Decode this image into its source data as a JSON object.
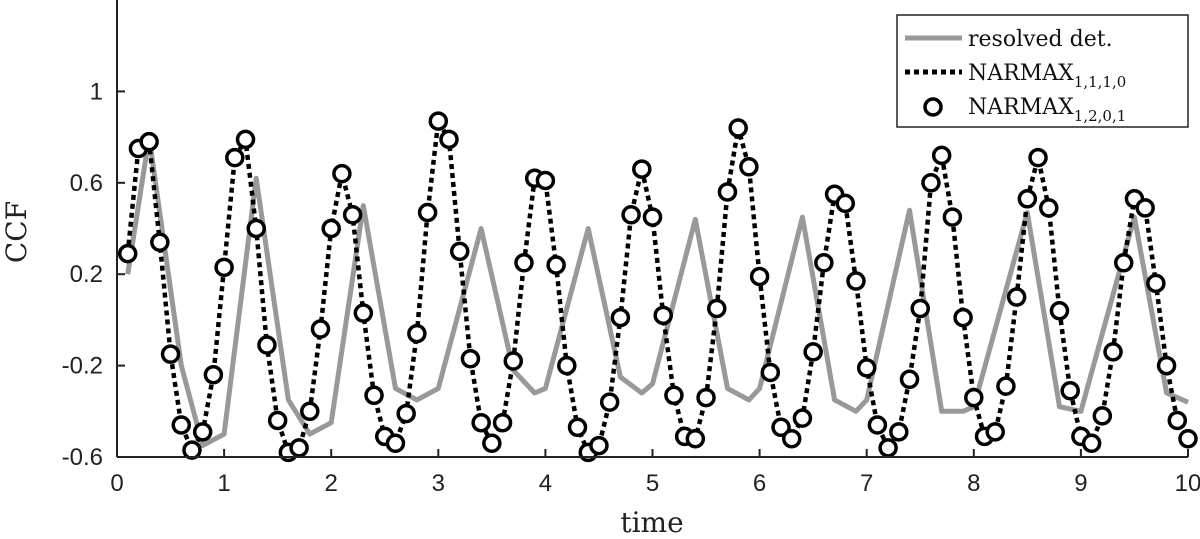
{
  "chart_data": {
    "type": "line",
    "xlabel": "time",
    "ylabel": "CCF",
    "xlim": [
      0,
      10
    ],
    "ylim": [
      -0.6,
      1.4
    ],
    "xticks": [
      0,
      1,
      2,
      3,
      4,
      5,
      6,
      7,
      8,
      9,
      10
    ],
    "xtick_labels": [
      "0",
      "1",
      "2",
      "3",
      "4",
      "5",
      "6",
      "7",
      "8",
      "9",
      "10"
    ],
    "yticks": [
      -0.6,
      -0.2,
      0.2,
      0.6,
      1
    ],
    "ytick_labels": [
      "-0.6",
      "-0.2",
      "0.2",
      "0.6",
      "1"
    ],
    "grid": false,
    "legend_position": "top-right",
    "series": [
      {
        "name": "resolved det.",
        "style": "solid",
        "color": "#999999",
        "x": [
          0.1,
          0.3,
          0.6,
          0.8,
          1.0,
          1.3,
          1.6,
          1.8,
          2.0,
          2.3,
          2.6,
          2.8,
          3.0,
          3.4,
          3.7,
          3.9,
          4.0,
          4.4,
          4.7,
          4.9,
          5.0,
          5.4,
          5.7,
          5.9,
          6.0,
          6.4,
          6.7,
          6.9,
          7.0,
          7.4,
          7.7,
          7.9,
          8.0,
          8.5,
          8.8,
          9.0,
          9.5,
          9.8,
          10.0
        ],
        "y": [
          0.2,
          0.8,
          -0.2,
          -0.55,
          -0.5,
          0.62,
          -0.35,
          -0.5,
          -0.45,
          0.5,
          -0.3,
          -0.35,
          -0.3,
          0.4,
          -0.22,
          -0.32,
          -0.3,
          0.4,
          -0.25,
          -0.32,
          -0.28,
          0.44,
          -0.3,
          -0.35,
          -0.3,
          0.45,
          -0.35,
          -0.4,
          -0.35,
          0.48,
          -0.4,
          -0.4,
          -0.38,
          0.47,
          -0.38,
          -0.4,
          0.45,
          -0.32,
          -0.36
        ]
      },
      {
        "name": "NARMAX_{1,1,1,0}",
        "label_base": "NARMAX",
        "label_sub": "1,1,1,0",
        "style": "dotted",
        "color": "#000000",
        "x": [
          0.1,
          0.2,
          0.3,
          0.4,
          0.5,
          0.6,
          0.7,
          0.8,
          0.9,
          1.0,
          1.1,
          1.2,
          1.3,
          1.4,
          1.5,
          1.6,
          1.7,
          1.8,
          1.9,
          2.0,
          2.1,
          2.2,
          2.3,
          2.4,
          2.5,
          2.6,
          2.7,
          2.8,
          2.9,
          3.0,
          3.1,
          3.2,
          3.3,
          3.4,
          3.5,
          3.6,
          3.7,
          3.8,
          3.9,
          4.0,
          4.1,
          4.2,
          4.3,
          4.4,
          4.5,
          4.6,
          4.7,
          4.8,
          4.9,
          5.0,
          5.1,
          5.2,
          5.3,
          5.4,
          5.5,
          5.6,
          5.7,
          5.8,
          5.9,
          6.0,
          6.1,
          6.2,
          6.3,
          6.4,
          6.5,
          6.6,
          6.7,
          6.8,
          6.9,
          7.0,
          7.1,
          7.2,
          7.3,
          7.4,
          7.5,
          7.6,
          7.7,
          7.8,
          7.9,
          8.0,
          8.1,
          8.2,
          8.3,
          8.4,
          8.5,
          8.6,
          8.7,
          8.8,
          8.9,
          9.0,
          9.1,
          9.2,
          9.3,
          9.4,
          9.5,
          9.6,
          9.7,
          9.8,
          9.9,
          10.0
        ],
        "y": [
          0.29,
          0.75,
          0.78,
          0.34,
          -0.15,
          -0.46,
          -0.57,
          -0.49,
          -0.24,
          0.23,
          0.71,
          0.79,
          0.4,
          -0.11,
          -0.44,
          -0.58,
          -0.56,
          -0.4,
          -0.04,
          0.4,
          0.64,
          0.46,
          0.03,
          -0.33,
          -0.51,
          -0.54,
          -0.41,
          -0.06,
          0.47,
          0.87,
          0.79,
          0.3,
          -0.17,
          -0.45,
          -0.54,
          -0.45,
          -0.18,
          0.25,
          0.62,
          0.61,
          0.24,
          -0.2,
          -0.47,
          -0.58,
          -0.55,
          -0.36,
          0.01,
          0.46,
          0.66,
          0.45,
          0.02,
          -0.33,
          -0.51,
          -0.52,
          -0.34,
          0.05,
          0.56,
          0.84,
          0.67,
          0.19,
          -0.23,
          -0.47,
          -0.52,
          -0.43,
          -0.14,
          0.25,
          0.55,
          0.51,
          0.17,
          -0.21,
          -0.46,
          -0.56,
          -0.49,
          -0.26,
          0.05,
          0.6,
          0.72,
          0.45,
          0.01,
          -0.34,
          -0.51,
          -0.49,
          -0.29,
          0.1,
          0.53,
          0.71,
          0.49,
          0.04,
          -0.31,
          -0.51,
          -0.54,
          -0.42,
          -0.14,
          0.25,
          0.53,
          0.49,
          0.16,
          -0.2,
          -0.44,
          -0.52
        ]
      },
      {
        "name": "NARMAX_{1,2,0,1}",
        "label_base": "NARMAX",
        "label_sub": "1,2,0,1",
        "style": "circle-markers",
        "color": "#000000",
        "x": [
          0.1,
          0.2,
          0.3,
          0.4,
          0.5,
          0.6,
          0.7,
          0.8,
          0.9,
          1.0,
          1.1,
          1.2,
          1.3,
          1.4,
          1.5,
          1.6,
          1.7,
          1.8,
          1.9,
          2.0,
          2.1,
          2.2,
          2.3,
          2.4,
          2.5,
          2.6,
          2.7,
          2.8,
          2.9,
          3.0,
          3.1,
          3.2,
          3.3,
          3.4,
          3.5,
          3.6,
          3.7,
          3.8,
          3.9,
          4.0,
          4.1,
          4.2,
          4.3,
          4.4,
          4.5,
          4.6,
          4.7,
          4.8,
          4.9,
          5.0,
          5.1,
          5.2,
          5.3,
          5.4,
          5.5,
          5.6,
          5.7,
          5.8,
          5.9,
          6.0,
          6.1,
          6.2,
          6.3,
          6.4,
          6.5,
          6.6,
          6.7,
          6.8,
          6.9,
          7.0,
          7.1,
          7.2,
          7.3,
          7.4,
          7.5,
          7.6,
          7.7,
          7.8,
          7.9,
          8.0,
          8.1,
          8.2,
          8.3,
          8.4,
          8.5,
          8.6,
          8.7,
          8.8,
          8.9,
          9.0,
          9.1,
          9.2,
          9.3,
          9.4,
          9.5,
          9.6,
          9.7,
          9.8,
          9.9,
          10.0
        ],
        "y": [
          0.29,
          0.75,
          0.78,
          0.34,
          -0.15,
          -0.46,
          -0.57,
          -0.49,
          -0.24,
          0.23,
          0.71,
          0.79,
          0.4,
          -0.11,
          -0.44,
          -0.58,
          -0.56,
          -0.4,
          -0.04,
          0.4,
          0.64,
          0.46,
          0.03,
          -0.33,
          -0.51,
          -0.54,
          -0.41,
          -0.06,
          0.47,
          0.87,
          0.79,
          0.3,
          -0.17,
          -0.45,
          -0.54,
          -0.45,
          -0.18,
          0.25,
          0.62,
          0.61,
          0.24,
          -0.2,
          -0.47,
          -0.58,
          -0.55,
          -0.36,
          0.01,
          0.46,
          0.66,
          0.45,
          0.02,
          -0.33,
          -0.51,
          -0.52,
          -0.34,
          0.05,
          0.56,
          0.84,
          0.67,
          0.19,
          -0.23,
          -0.47,
          -0.52,
          -0.43,
          -0.14,
          0.25,
          0.55,
          0.51,
          0.17,
          -0.21,
          -0.46,
          -0.56,
          -0.49,
          -0.26,
          0.05,
          0.6,
          0.72,
          0.45,
          0.01,
          -0.34,
          -0.51,
          -0.49,
          -0.29,
          0.1,
          0.53,
          0.71,
          0.49,
          0.04,
          -0.31,
          -0.51,
          -0.54,
          -0.42,
          -0.14,
          0.25,
          0.53,
          0.49,
          0.16,
          -0.2,
          -0.44,
          -0.52
        ]
      }
    ]
  }
}
